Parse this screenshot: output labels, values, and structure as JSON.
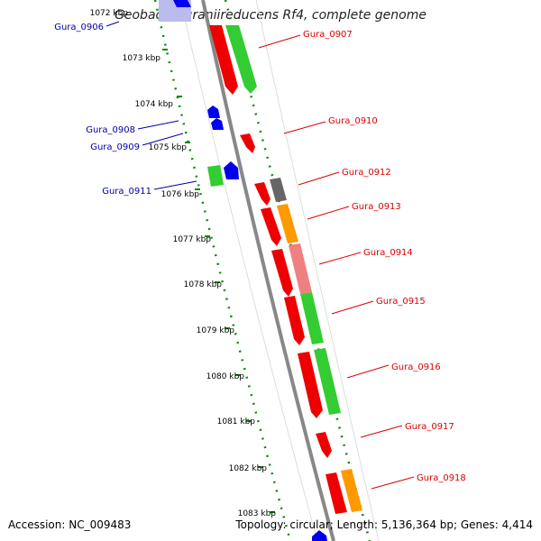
{
  "title": "Geobacter uraniireducens Rf4, complete genome",
  "accession": "Accession: NC_009483",
  "summary": "Topology: circular; Length: 5,136,364 bp; Genes: 4,414",
  "ticks": [
    "1073 kbp",
    "1074 kbp",
    "1075 kbp",
    "1076 kbp",
    "1077 kbp",
    "1078 kbp",
    "1079 kbp",
    "1080 kbp",
    "1081 kbp",
    "1082 kbp",
    "1083 kbp"
  ],
  "top_tick_partial": "1072 kbp",
  "genes_left": [
    {
      "label": "Gura_0906",
      "color": "#0000cc"
    },
    {
      "label": "Gura_0908",
      "color": "#0000cc"
    },
    {
      "label": "Gura_0909",
      "color": "#0000cc"
    },
    {
      "label": "Gura_0911",
      "color": "#0000cc"
    }
  ],
  "genes_right": [
    {
      "label": "Gura_0907",
      "color": "#dd0000"
    },
    {
      "label": "Gura_0910",
      "color": "#dd0000"
    },
    {
      "label": "Gura_0912",
      "color": "#dd0000"
    },
    {
      "label": "Gura_0913",
      "color": "#dd0000"
    },
    {
      "label": "Gura_0914",
      "color": "#dd0000"
    },
    {
      "label": "Gura_0915",
      "color": "#dd0000"
    },
    {
      "label": "Gura_0916",
      "color": "#dd0000"
    },
    {
      "label": "Gura_0917",
      "color": "#dd0000"
    },
    {
      "label": "Gura_0918",
      "color": "#dd0000"
    }
  ],
  "colors": {
    "cds_red": "#ee0000",
    "feature_green": "#33cc33",
    "feature_orange": "#ff9900",
    "feature_pink": "#ee8080",
    "feature_gray": "#666666",
    "gene_blue": "#0000ee",
    "backbone": "#888888",
    "dotted_ring": "#118811"
  }
}
